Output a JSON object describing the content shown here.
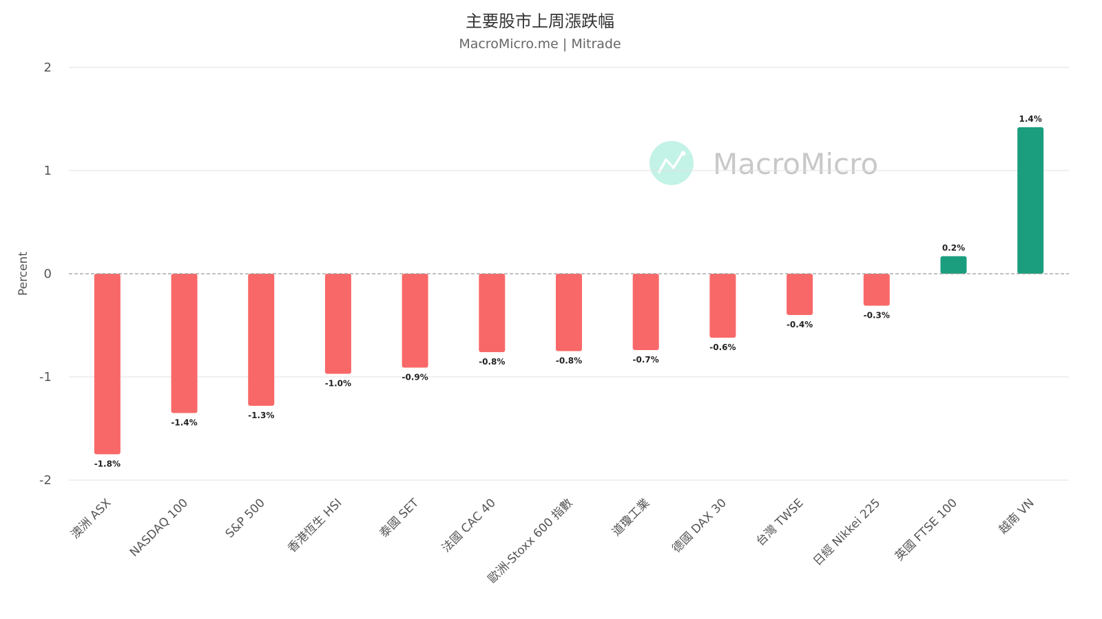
{
  "chart_data": {
    "type": "bar",
    "title": "主要股市上周漲跌幅",
    "subtitle": "MacroMicro.me | Mitrade",
    "ylabel": "Percent",
    "xlabel": "",
    "ylim": [
      -2,
      2
    ],
    "yticks": [
      2,
      1,
      0,
      -1,
      -2
    ],
    "grid": true,
    "legend": "none",
    "categories": [
      "澳洲 ASX",
      "NASDAQ 100",
      "S&P 500",
      "香港恆生 HSI",
      "泰國 SET",
      "法國 CAC 40",
      "歐洲-Stoxx 600 指數",
      "道瓊工業",
      "德國 DAX 30",
      "台灣 TWSE",
      "日經 Nikkei 225",
      "英國 FTSE 100",
      "越南 VN"
    ],
    "values": [
      -1.75,
      -1.35,
      -1.28,
      -0.97,
      -0.91,
      -0.76,
      -0.75,
      -0.74,
      -0.62,
      -0.4,
      -0.31,
      0.17,
      1.42
    ],
    "data_labels": [
      "-1.8%",
      "-1.4%",
      "-1.3%",
      "-1.0%",
      "-0.9%",
      "-0.8%",
      "-0.8%",
      "-0.7%",
      "-0.6%",
      "-0.4%",
      "-0.3%",
      "0.2%",
      "1.4%"
    ],
    "colors": {
      "negative": "#f96868",
      "positive": "#1a9e7e",
      "grid": "#e0e0e0",
      "zero_line": "#999999"
    }
  },
  "watermark": {
    "text": "MacroMicro",
    "icon": "chart-trend-icon",
    "icon_color": "#c3f2e6"
  }
}
